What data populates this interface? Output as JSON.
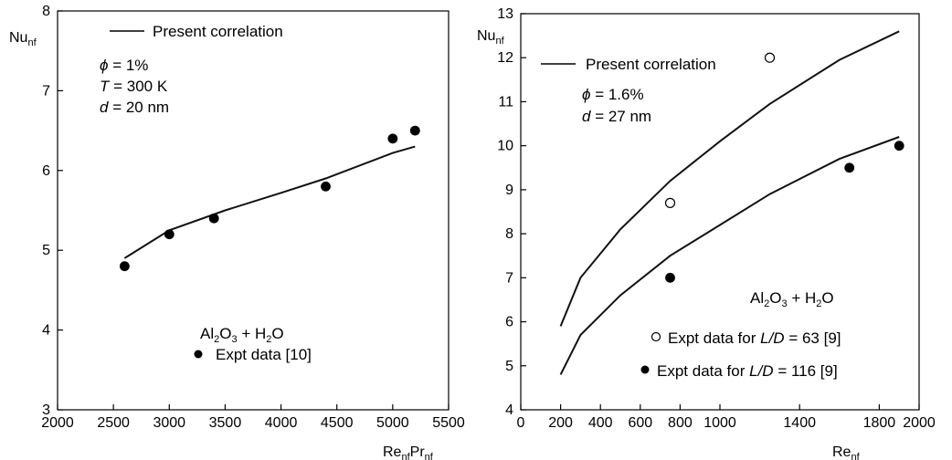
{
  "chart_data": [
    {
      "type": "line",
      "title": "",
      "xlabel": {
        "main": "Re",
        "sub1": "nf",
        "mid": "Pr",
        "sub2": "nf"
      },
      "ylabel": {
        "main": "Nu",
        "sub": "nf"
      },
      "xlim": [
        2000,
        5500
      ],
      "ylim": [
        3,
        8
      ],
      "xticks": [
        2000,
        2500,
        3000,
        3500,
        4000,
        4500,
        5000,
        5500
      ],
      "yticks": [
        3,
        4,
        5,
        6,
        7,
        8
      ],
      "series": [
        {
          "name": "Present correlation",
          "kind": "line",
          "x": [
            2600,
            3000,
            3500,
            4000,
            4400,
            5000,
            5200
          ],
          "y": [
            4.9,
            5.25,
            5.5,
            5.72,
            5.9,
            6.22,
            6.3
          ]
        },
        {
          "name": "Expt data [10]",
          "kind": "scatter-filled",
          "x": [
            2600,
            3000,
            3400,
            4400,
            5000,
            5200
          ],
          "y": [
            4.8,
            5.2,
            5.4,
            5.8,
            6.4,
            6.5
          ]
        }
      ],
      "legend_line_label": "Present correlation",
      "params": [
        {
          "sym": "ϕ",
          "rest": " = 1%"
        },
        {
          "sym": "T",
          "rest": " = 300 K"
        },
        {
          "sym": "d",
          "rest": " = 20 nm"
        }
      ],
      "material": {
        "a": "Al",
        "a_sub": "2",
        "b": "O",
        "b_sub": "3",
        "c": " + H",
        "c_sub": "2",
        "d": "O"
      },
      "expt_label": "Expt data [10]"
    },
    {
      "type": "line",
      "title": "",
      "xlabel": {
        "main": "Re",
        "sub": "nf"
      },
      "ylabel": {
        "main": "Nu",
        "sub": "nf"
      },
      "xlim": [
        0,
        2000
      ],
      "ylim": [
        4,
        13
      ],
      "xticks": [
        0,
        200,
        400,
        600,
        800,
        1000,
        1400,
        1800,
        2000
      ],
      "yticks": [
        4,
        5,
        6,
        7,
        8,
        9,
        10,
        11,
        12,
        13
      ],
      "series": [
        {
          "name": "Present correlation",
          "kind": "line",
          "x": [
            200,
            300,
            500,
            750,
            1000,
            1250,
            1600,
            1900
          ],
          "y": [
            5.9,
            7.0,
            8.1,
            9.2,
            10.1,
            10.95,
            11.95,
            12.6
          ]
        },
        {
          "name": "",
          "kind": "line",
          "x": [
            200,
            300,
            500,
            750,
            1000,
            1250,
            1600,
            1900
          ],
          "y": [
            4.8,
            5.7,
            6.6,
            7.5,
            8.2,
            8.9,
            9.7,
            10.2
          ]
        },
        {
          "name": "Expt data for L/D = 63 [9]",
          "kind": "scatter-open",
          "x": [
            750,
            1250
          ],
          "y": [
            8.7,
            12.0
          ]
        },
        {
          "name": "Expt data for L/D = 116 [9]",
          "kind": "scatter-filled",
          "x": [
            750,
            1650,
            1900
          ],
          "y": [
            7.0,
            9.5,
            10.0
          ]
        }
      ],
      "legend_line_label": "Present correlation",
      "params": [
        {
          "sym": "ϕ",
          "rest": " = 1.6%"
        },
        {
          "sym": "d",
          "rest": " = 27 nm"
        }
      ],
      "material": {
        "a": "Al",
        "a_sub": "2",
        "b": "O",
        "b_sub": "3",
        "c": " + H",
        "c_sub": "2",
        "d": "O"
      },
      "expt_open_label": {
        "pre": "Expt data for ",
        "ld": "L/D",
        "post": " = 63 [9]"
      },
      "expt_filled_label": {
        "pre": "Expt data for ",
        "ld": "L/D",
        "post": " = 116 [9]"
      }
    }
  ]
}
